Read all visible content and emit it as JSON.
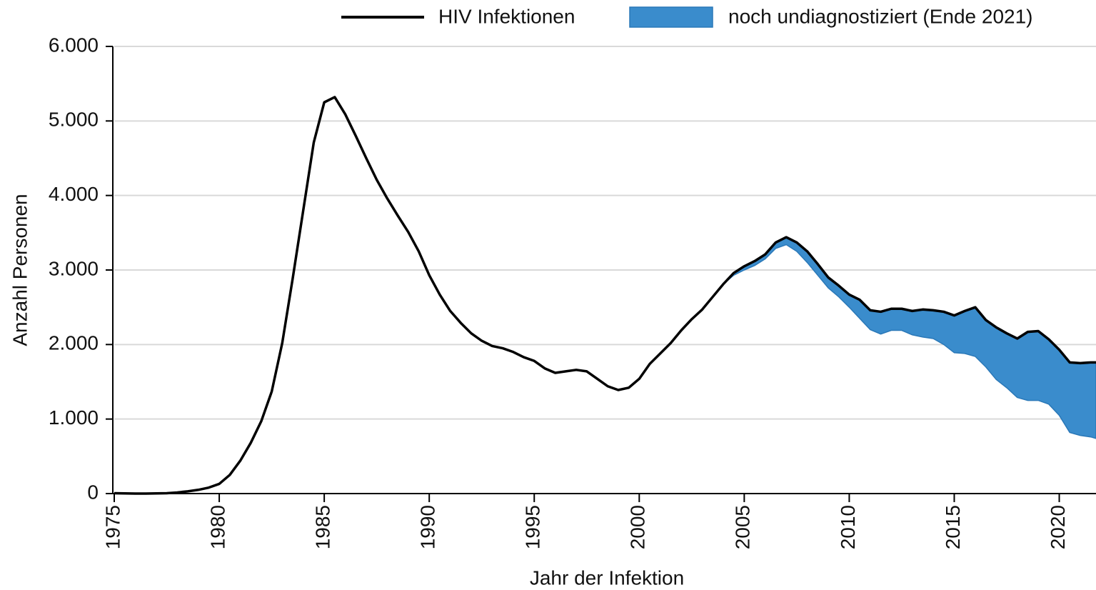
{
  "chart_data": {
    "type": "line",
    "x_label": "Jahr der Infektion",
    "y_label": "Anzahl Personen",
    "x": [
      1975,
      1975.5,
      1976,
      1976.5,
      1977,
      1977.5,
      1978,
      1978.5,
      1979,
      1979.5,
      1980,
      1980.5,
      1981,
      1981.5,
      1982,
      1982.5,
      1983,
      1983.5,
      1984,
      1984.5,
      1985,
      1985.5,
      1986,
      1986.5,
      1987,
      1987.5,
      1988,
      1988.5,
      1989,
      1989.5,
      1990,
      1990.5,
      1991,
      1991.5,
      1992,
      1992.5,
      1993,
      1993.5,
      1994,
      1994.5,
      1995,
      1995.5,
      1996,
      1996.5,
      1997,
      1997.5,
      1998,
      1998.5,
      1999,
      1999.5,
      2000,
      2000.5,
      2001,
      2001.5,
      2002,
      2002.5,
      2003,
      2003.5,
      2004,
      2004.5,
      2005,
      2005.5,
      2006,
      2006.5,
      2007,
      2007.5,
      2008,
      2008.5,
      2009,
      2009.5,
      2010,
      2010.5,
      2011,
      2011.5,
      2012,
      2012.5,
      2013,
      2013.5,
      2014,
      2014.5,
      2015,
      2015.5,
      2016,
      2016.5,
      2017,
      2017.5,
      2018,
      2018.5,
      2019,
      2019.5,
      2020,
      2020.5,
      2021,
      2021.5,
      2021.75
    ],
    "series": [
      {
        "name": "HIV Infektionen",
        "color": "#000000",
        "kind": "line",
        "values": [
          5,
          2,
          0,
          0,
          2,
          5,
          15,
          30,
          50,
          80,
          130,
          250,
          440,
          680,
          970,
          1370,
          2020,
          2890,
          3800,
          4710,
          5250,
          5320,
          5090,
          4800,
          4500,
          4210,
          3960,
          3730,
          3510,
          3250,
          2930,
          2670,
          2450,
          2290,
          2150,
          2050,
          1980,
          1950,
          1900,
          1830,
          1780,
          1680,
          1620,
          1640,
          1660,
          1640,
          1540,
          1440,
          1390,
          1420,
          1540,
          1740,
          1880,
          2020,
          2190,
          2340,
          2470,
          2640,
          2810,
          2960,
          3050,
          3120,
          3210,
          3370,
          3440,
          3370,
          3250,
          3080,
          2900,
          2790,
          2670,
          2600,
          2460,
          2440,
          2480,
          2480,
          2450,
          2470,
          2460,
          2440,
          2390,
          2450,
          2500,
          2330,
          2230,
          2150,
          2080,
          2170,
          2180,
          2070,
          1930,
          1760,
          1750,
          1760,
          1760
        ]
      },
      {
        "name": "noch undiagnostiziert (Ende 2021)",
        "color": "#3a8ccc",
        "kind": "band",
        "values": [
          null,
          null,
          null,
          null,
          null,
          null,
          null,
          null,
          null,
          null,
          null,
          null,
          null,
          null,
          null,
          null,
          null,
          null,
          null,
          null,
          null,
          null,
          null,
          null,
          null,
          null,
          null,
          null,
          null,
          null,
          null,
          null,
          null,
          null,
          null,
          null,
          null,
          null,
          null,
          null,
          null,
          null,
          null,
          null,
          null,
          null,
          null,
          null,
          null,
          null,
          null,
          null,
          null,
          null,
          null,
          null,
          null,
          null,
          0,
          30,
          50,
          60,
          60,
          80,
          100,
          120,
          150,
          150,
          140,
          150,
          170,
          250,
          260,
          300,
          290,
          290,
          320,
          370,
          380,
          440,
          500,
          570,
          660,
          630,
          700,
          730,
          790,
          920,
          930,
          870,
          880,
          940,
          970,
          1000,
          1020
        ]
      }
    ],
    "xlim": [
      1975,
      2021.75
    ],
    "xticks": [
      1975,
      1980,
      1985,
      1990,
      1995,
      2000,
      2005,
      2010,
      2015,
      2020
    ],
    "ylim": [
      0,
      6000
    ],
    "yticks": [
      0,
      {
        "value": 1000,
        "label": "1.000"
      },
      {
        "value": 2000,
        "label": "2.000"
      },
      {
        "value": 3000,
        "label": "3.000"
      },
      {
        "value": 4000,
        "label": "4.000"
      },
      {
        "value": 5000,
        "label": "5.000"
      },
      {
        "value": 6000,
        "label": "6.000"
      }
    ],
    "grid": true,
    "legend": "top"
  }
}
